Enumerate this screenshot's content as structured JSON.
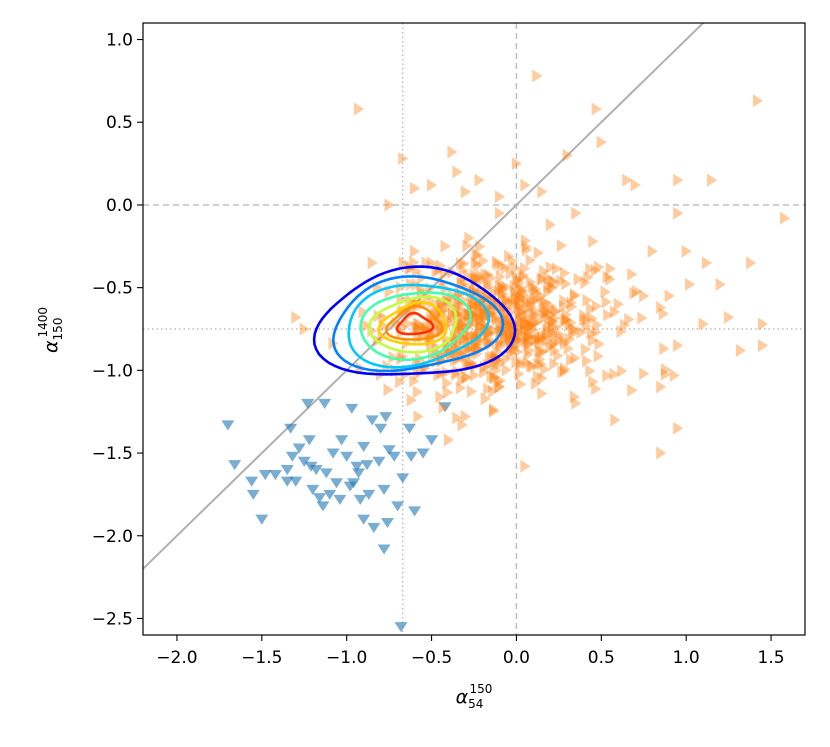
{
  "chart_data": {
    "type": "scatter",
    "xlabel": {
      "base": "α",
      "sub": "54",
      "sup": "150"
    },
    "ylabel": {
      "base": "α",
      "sub": "150",
      "sup": "1400"
    },
    "xlim": [
      -2.2,
      1.7
    ],
    "ylim": [
      -2.6,
      1.1
    ],
    "xticks": [
      -2.0,
      -1.5,
      -1.0,
      -0.5,
      0.0,
      0.5,
      1.0,
      1.5
    ],
    "xtick_labels": [
      "−2.0",
      "−1.5",
      "−1.0",
      "−0.5",
      "0.0",
      "0.5",
      "1.0",
      "1.5"
    ],
    "yticks": [
      1.0,
      0.5,
      0.0,
      -0.5,
      -1.0,
      -1.5,
      -2.0,
      -2.5
    ],
    "ytick_labels": [
      "1.0",
      "0.5",
      "0.0",
      "−0.5",
      "−1.0",
      "−1.5",
      "−2.0",
      "−2.5"
    ],
    "reference_lines": {
      "dashed_vertical_x": 0.0,
      "dashed_horizontal_y": 0.0,
      "dotted_vertical_x": -0.67,
      "dotted_horizontal_y": -0.75,
      "diagonal_line": {
        "slope": 1.0,
        "intercept": 0.0
      },
      "dashed_color": "#bbbbbb",
      "dotted_color": "#bbbbbb",
      "diagonal_color": "#b0b0b0"
    },
    "series": [
      {
        "marker": "triangle-down",
        "color": "#1f77b4",
        "points": [
          [
            -1.7,
            -1.33
          ],
          [
            -1.66,
            -1.57
          ],
          [
            -1.56,
            -1.67
          ],
          [
            -1.55,
            -1.75
          ],
          [
            -1.5,
            -1.9
          ],
          [
            -1.48,
            -1.63
          ],
          [
            -1.42,
            -1.63
          ],
          [
            -1.35,
            -1.6
          ],
          [
            -1.33,
            -1.35
          ],
          [
            -1.32,
            -1.52
          ],
          [
            -1.3,
            -1.67
          ],
          [
            -1.28,
            -1.47
          ],
          [
            -1.25,
            -1.55
          ],
          [
            -1.23,
            -1.2
          ],
          [
            -1.22,
            -1.42
          ],
          [
            -1.21,
            -1.58
          ],
          [
            -1.2,
            -1.72
          ],
          [
            -1.18,
            -1.6
          ],
          [
            -1.16,
            -1.77
          ],
          [
            -1.14,
            -1.82
          ],
          [
            -1.13,
            -1.2
          ],
          [
            -1.1,
            -1.75
          ],
          [
            -1.08,
            -1.5
          ],
          [
            -1.06,
            -1.68
          ],
          [
            -1.04,
            -1.78
          ],
          [
            -1.03,
            -1.42
          ],
          [
            -1.0,
            -1.52
          ],
          [
            -0.98,
            -1.7
          ],
          [
            -0.97,
            -1.23
          ],
          [
            -0.96,
            -1.68
          ],
          [
            -0.94,
            -1.58
          ],
          [
            -0.92,
            -1.78
          ],
          [
            -0.9,
            -1.46
          ],
          [
            -0.9,
            -1.9
          ],
          [
            -0.88,
            -1.57
          ],
          [
            -0.87,
            -1.75
          ],
          [
            -0.85,
            -1.3
          ],
          [
            -0.84,
            -1.95
          ],
          [
            -0.81,
            -1.55
          ],
          [
            -0.8,
            -1.35
          ],
          [
            -0.78,
            -1.72
          ],
          [
            -0.77,
            -1.28
          ],
          [
            -0.76,
            -1.92
          ],
          [
            -0.75,
            -1.48
          ],
          [
            -0.72,
            -1.52
          ],
          [
            -0.7,
            -1.82
          ],
          [
            -0.68,
            -2.55
          ],
          [
            -0.67,
            -1.65
          ],
          [
            -0.63,
            -1.35
          ],
          [
            -0.62,
            -1.52
          ],
          [
            -0.6,
            -1.85
          ],
          [
            -0.55,
            -1.5
          ],
          [
            -0.5,
            -1.42
          ],
          [
            -0.42,
            -1.22
          ],
          [
            -0.78,
            -2.08
          ],
          [
            -1.35,
            -1.67
          ],
          [
            -1.12,
            -1.62
          ],
          [
            -0.93,
            -1.62
          ]
        ]
      },
      {
        "marker": "triangle-right",
        "color": "#ff7f0e",
        "cloud": {
          "n": 620,
          "mean_x": -0.12,
          "mean_y": -0.72,
          "sd_x": 0.32,
          "sd_y": 0.2,
          "seed": 7
        },
        "points": [
          [
            -0.93,
            0.58
          ],
          [
            0.12,
            0.78
          ],
          [
            0.47,
            0.58
          ],
          [
            1.42,
            0.63
          ],
          [
            -0.67,
            0.28
          ],
          [
            -0.38,
            0.32
          ],
          [
            0.0,
            0.25
          ],
          [
            0.3,
            0.3
          ],
          [
            0.5,
            0.38
          ],
          [
            -0.35,
            0.2
          ],
          [
            -0.22,
            0.15
          ],
          [
            0.05,
            0.12
          ],
          [
            0.65,
            0.15
          ],
          [
            0.95,
            0.15
          ],
          [
            1.15,
            0.15
          ],
          [
            0.7,
            0.12
          ],
          [
            -0.75,
            0.0
          ],
          [
            -0.6,
            0.1
          ],
          [
            -0.5,
            0.12
          ],
          [
            -0.3,
            0.08
          ],
          [
            -0.1,
            0.05
          ],
          [
            0.15,
            0.08
          ],
          [
            -0.1,
            -0.05
          ],
          [
            0.2,
            -0.12
          ],
          [
            0.35,
            -0.05
          ],
          [
            0.95,
            -0.05
          ],
          [
            1.58,
            -0.08
          ],
          [
            0.8,
            -0.28
          ],
          [
            1.0,
            -0.28
          ],
          [
            1.12,
            -0.35
          ],
          [
            1.38,
            -0.35
          ],
          [
            1.02,
            -0.48
          ],
          [
            1.2,
            -0.48
          ],
          [
            0.75,
            -0.55
          ],
          [
            0.9,
            -0.55
          ],
          [
            0.85,
            -0.62
          ],
          [
            1.25,
            -0.68
          ],
          [
            1.1,
            -0.72
          ],
          [
            1.45,
            -0.72
          ],
          [
            0.95,
            -0.85
          ],
          [
            1.32,
            -0.88
          ],
          [
            1.45,
            -0.85
          ],
          [
            0.93,
            -1.03
          ],
          [
            0.85,
            -1.1
          ],
          [
            0.68,
            -1.12
          ],
          [
            0.58,
            -1.3
          ],
          [
            0.35,
            -1.2
          ],
          [
            0.75,
            -1.02
          ],
          [
            0.95,
            -1.35
          ],
          [
            0.85,
            -1.5
          ],
          [
            0.05,
            -1.58
          ],
          [
            -0.1,
            -1.1
          ],
          [
            -0.32,
            -1.33
          ],
          [
            -0.4,
            -1.42
          ],
          [
            -0.58,
            -1.28
          ],
          [
            -0.62,
            -1.18
          ],
          [
            -1.3,
            -0.68
          ],
          [
            -1.25,
            -0.75
          ],
          [
            -0.82,
            -0.5
          ],
          [
            -0.85,
            -0.35
          ],
          [
            -0.6,
            -0.28
          ],
          [
            -0.42,
            -0.25
          ],
          [
            -0.28,
            -0.2
          ],
          [
            -0.5,
            -0.35
          ],
          [
            0.45,
            -0.22
          ],
          [
            0.55,
            -0.45
          ],
          [
            0.68,
            -0.42
          ],
          [
            0.6,
            -0.6
          ]
        ]
      }
    ],
    "density_contours": {
      "center": [
        -0.6,
        -0.72
      ],
      "levels": [
        {
          "color": "#0000ff",
          "rx": 0.55,
          "ry": 0.34
        },
        {
          "color": "#0080ff",
          "rx": 0.47,
          "ry": 0.29
        },
        {
          "color": "#00c8ff",
          "rx": 0.4,
          "ry": 0.25
        },
        {
          "color": "#40ffb0",
          "rx": 0.32,
          "ry": 0.2
        },
        {
          "color": "#c0ff40",
          "rx": 0.26,
          "ry": 0.16
        },
        {
          "color": "#ffd000",
          "rx": 0.2,
          "ry": 0.12
        },
        {
          "color": "#ff9000",
          "rx": 0.16,
          "ry": 0.095
        },
        {
          "color": "#ff3000",
          "rx": 0.1,
          "ry": 0.06
        }
      ]
    }
  }
}
